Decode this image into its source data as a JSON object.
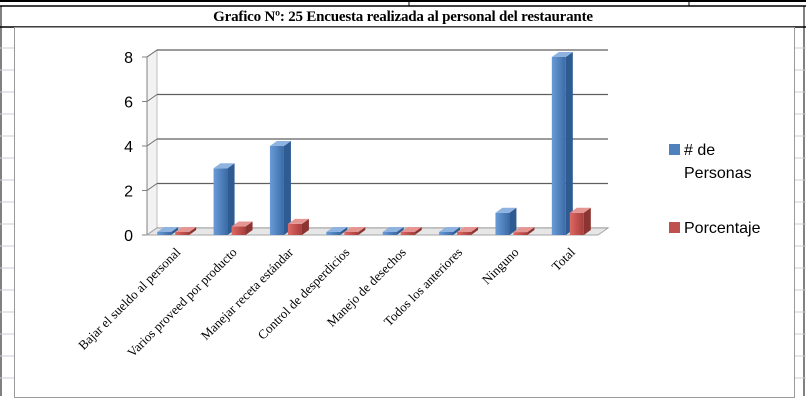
{
  "chart_data": {
    "type": "bar",
    "title": "Grafico Nº: 25 Encuesta realizada al personal del restaurante",
    "categories": [
      "Bajar el sueldo al personal",
      "Varios proveed por producto",
      "Manejar receta estándar",
      "Control de desperdicios",
      "Manejo de desechos",
      "Todos los anteriores",
      "Ninguno",
      "Total"
    ],
    "series": [
      {
        "name": "# de Personas",
        "values": [
          0,
          3,
          4,
          0,
          0,
          0,
          1,
          8
        ],
        "color": "#4f81bd"
      },
      {
        "name": "Porcentaje",
        "values": [
          0,
          0.38,
          0.5,
          0,
          0,
          0,
          0.13,
          1
        ],
        "color": "#c0504d"
      }
    ],
    "y_ticks": [
      "0",
      "2",
      "4",
      "6",
      "8"
    ],
    "ylim": [
      0,
      8
    ],
    "grid": true,
    "legend_position": "right",
    "legend": [
      {
        "label_line1": "# de",
        "label_line2": "Personas"
      },
      {
        "label_line1": "Porcentaje"
      }
    ]
  }
}
